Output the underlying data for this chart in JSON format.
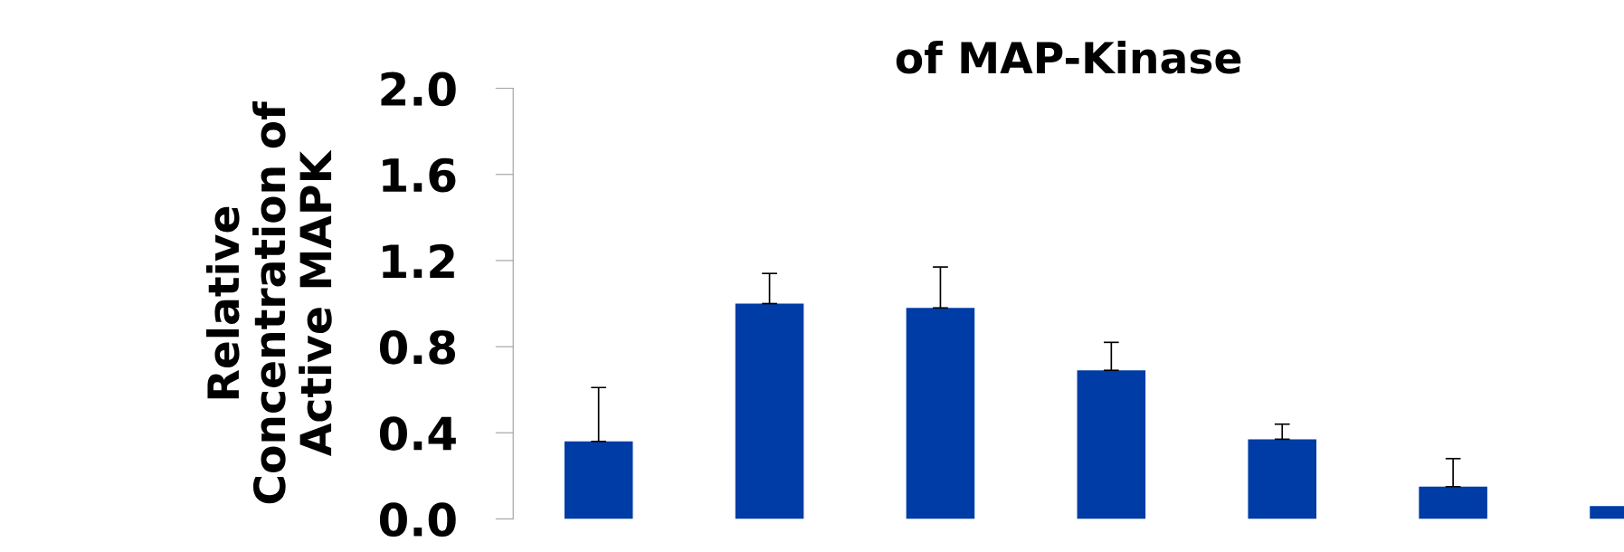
{
  "chart_data": {
    "type": "bar",
    "title": "of MAP-Kinase",
    "ylabel": "Relative\nConcentration of\nActive MAPK",
    "categories": [
      null,
      null,
      null,
      null,
      null,
      null,
      null
    ],
    "values": [
      0.36,
      1.0,
      0.98,
      0.69,
      0.37,
      0.15,
      0.06
    ],
    "errors": [
      [
        0.36,
        0.61
      ],
      [
        1.0,
        1.14
      ],
      [
        0.98,
        1.17
      ],
      [
        0.69,
        0.82
      ],
      [
        0.37,
        0.44
      ],
      [
        0.15,
        0.28
      ],
      null
    ],
    "color": "#003ca5",
    "ylim": [
      0,
      2.0
    ],
    "yticks": [
      {
        "value": 0,
        "label": "0.0"
      },
      0.4,
      0.8,
      1.2,
      1.6,
      {
        "value": 2,
        "label": "2.0"
      }
    ],
    "tick_labels": "y",
    "grid": false
  }
}
